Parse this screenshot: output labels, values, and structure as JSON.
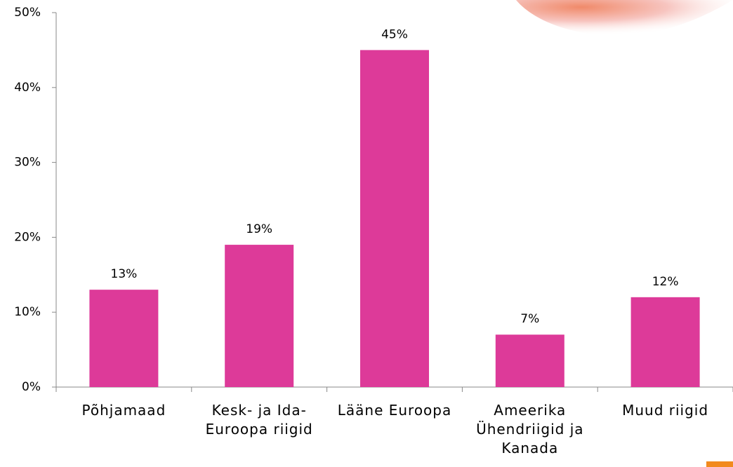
{
  "chart_data": {
    "type": "bar",
    "categories": [
      "Põhjamaad",
      "Kesk- ja Ida-Euroopa riigid",
      "Lääne Euroopa",
      "Ameerika Ühendriigid ja Kanada",
      "Muud riigid"
    ],
    "values": [
      13,
      19,
      45,
      7,
      12
    ],
    "value_labels": [
      "13%",
      "19%",
      "45%",
      "7%",
      "12%"
    ],
    "color": "#dd3a99",
    "ylim": [
      0,
      50
    ],
    "yticks": [
      {
        "value": 0,
        "label": "0%"
      },
      {
        "value": 10,
        "label": "10%"
      },
      {
        "value": 20,
        "label": "20%"
      },
      {
        "value": 30,
        "label": "30%"
      },
      {
        "value": 40,
        "label": "40%"
      },
      {
        "value": 50,
        "label": "50%"
      }
    ]
  }
}
